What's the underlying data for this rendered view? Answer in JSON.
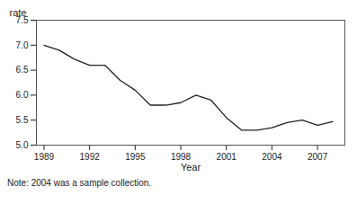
{
  "chart_data": {
    "type": "line",
    "x": [
      1989,
      1990,
      1991,
      1992,
      1993,
      1994,
      1995,
      1996,
      1997,
      1998,
      1999,
      2000,
      2001,
      2002,
      2003,
      2004,
      2005,
      2006,
      2007,
      2008
    ],
    "values": [
      7.0,
      6.9,
      6.72,
      6.6,
      6.6,
      6.3,
      6.1,
      5.8,
      5.8,
      5.85,
      6.0,
      5.9,
      5.55,
      5.3,
      5.3,
      5.35,
      5.45,
      5.5,
      5.4,
      5.47
    ],
    "color": "#222222",
    "xlim": [
      1988.5,
      2008.8
    ],
    "ylim": [
      5.0,
      7.5
    ],
    "xticks": [
      1989,
      1992,
      1995,
      1998,
      2001,
      2004,
      2007
    ],
    "yticks": [
      {
        "value": 5,
        "label": "5.0"
      },
      5.5,
      {
        "value": 6,
        "label": "6.0"
      },
      6.5,
      {
        "value": 7,
        "label": "7.0"
      },
      7.5
    ],
    "xlabel": "Year",
    "ylabel": "rate",
    "annotations": [
      "Note: 2004 was a sample collection."
    ]
  }
}
